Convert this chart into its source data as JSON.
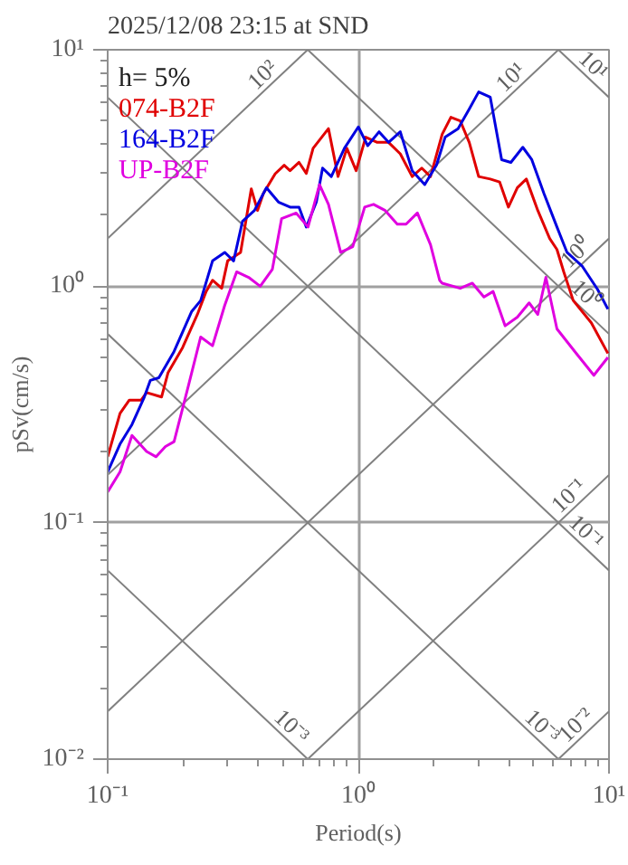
{
  "chart_data": {
    "type": "line",
    "title": "2025/12/08 23:15 at SND",
    "xlabel": "Period(s)",
    "ylabel": "pSv(cm/s)",
    "legend_title": "h= 5%",
    "legend": "top left",
    "log": "xy",
    "grid": true,
    "xlim": [
      0.1,
      10
    ],
    "ylim": [
      0.01,
      10
    ],
    "xticks": [
      {
        "value": 0.1,
        "label": "10⁻¹"
      },
      {
        "value": 1,
        "label": "10⁰"
      },
      {
        "value": 10,
        "label": "10¹"
      }
    ],
    "yticks": [
      {
        "value": 0.01,
        "label": "10⁻²"
      },
      {
        "value": 0.1,
        "label": "10⁻¹"
      },
      {
        "value": 1,
        "label": "10⁰"
      },
      {
        "value": 10,
        "label": "10¹"
      }
    ],
    "series": [
      {
        "color": "#808080",
        "x": [
          0.1,
          0.628
        ],
        "values": [
          1.592,
          10
        ]
      },
      {
        "color": "#808080",
        "x": [
          0.1,
          6.283
        ],
        "values": [
          0.1592,
          10
        ]
      },
      {
        "color": "#808080",
        "x": [
          0.1,
          10
        ],
        "values": [
          0.01592,
          1.592
        ]
      },
      {
        "color": "#808080",
        "x": [
          0.6283,
          10
        ],
        "values": [
          0.01,
          0.1592
        ]
      },
      {
        "color": "#808080",
        "x": [
          6.283,
          10
        ],
        "values": [
          0.01,
          0.01592
        ]
      },
      {
        "color": "#808080",
        "x": [
          6.283,
          10
        ],
        "values": [
          10,
          6.283
        ]
      },
      {
        "color": "#808080",
        "x": [
          0.6283,
          10
        ],
        "values": [
          10,
          0.6283
        ]
      },
      {
        "color": "#808080",
        "x": [
          0.1,
          10
        ],
        "values": [
          6.283,
          0.06283
        ]
      },
      {
        "color": "#808080",
        "x": [
          0.1,
          6.283
        ],
        "values": [
          0.6283,
          0.01
        ]
      },
      {
        "color": "#808080",
        "x": [
          0.1,
          0.6283
        ],
        "values": [
          0.06283,
          0.01
        ]
      },
      {
        "name": "074-B2F",
        "color": "#e00000",
        "x": [
          0.1,
          0.112,
          0.122,
          0.136,
          0.143,
          0.164,
          0.174,
          0.199,
          0.228,
          0.247,
          0.262,
          0.285,
          0.301,
          0.339,
          0.374,
          0.396,
          0.418,
          0.466,
          0.506,
          0.534,
          0.58,
          0.62,
          0.66,
          0.76,
          0.83,
          0.9,
          0.98,
          1.07,
          1.19,
          1.32,
          1.47,
          1.64,
          1.79,
          1.94,
          2.16,
          2.34,
          2.55,
          2.77,
          3.02,
          3.36,
          3.66,
          3.97,
          4.31,
          4.68,
          5.2,
          5.8,
          6.2,
          6.6,
          7.2,
          8.5,
          9.9
        ],
        "values": [
          0.19,
          0.29,
          0.33,
          0.33,
          0.355,
          0.34,
          0.43,
          0.55,
          0.76,
          0.95,
          1.06,
          0.98,
          1.28,
          1.39,
          2.58,
          2.09,
          2.47,
          2.99,
          3.25,
          3.08,
          3.34,
          3.0,
          3.83,
          4.64,
          2.91,
          3.83,
          3.08,
          4.27,
          4.06,
          4.06,
          3.63,
          2.91,
          3.16,
          2.91,
          4.39,
          5.18,
          5.0,
          4.06,
          2.91,
          2.84,
          2.76,
          2.16,
          2.61,
          2.84,
          2.09,
          1.59,
          1.43,
          1.15,
          0.87,
          0.7,
          0.52
        ]
      },
      {
        "name": "164-B2F",
        "color": "#0000e0",
        "x": [
          0.1,
          0.112,
          0.125,
          0.14,
          0.148,
          0.16,
          0.184,
          0.216,
          0.235,
          0.262,
          0.293,
          0.318,
          0.345,
          0.385,
          0.43,
          0.48,
          0.534,
          0.58,
          0.62,
          0.68,
          0.72,
          0.78,
          0.88,
          1.0,
          1.09,
          1.21,
          1.32,
          1.47,
          1.64,
          1.84,
          2.05,
          2.22,
          2.5,
          2.77,
          3.02,
          3.36,
          3.73,
          4.06,
          4.53,
          4.92,
          5.5,
          6.2,
          6.8,
          7.8,
          9.0,
          9.9
        ],
        "values": [
          0.164,
          0.215,
          0.26,
          0.34,
          0.4,
          0.41,
          0.53,
          0.78,
          0.87,
          1.28,
          1.39,
          1.28,
          1.88,
          2.09,
          2.61,
          2.27,
          2.16,
          2.16,
          1.78,
          2.27,
          3.16,
          2.91,
          3.83,
          4.72,
          3.93,
          4.5,
          4.06,
          4.5,
          3.08,
          2.69,
          3.25,
          4.27,
          4.64,
          5.62,
          6.63,
          6.3,
          3.43,
          3.34,
          3.87,
          3.43,
          2.47,
          1.78,
          1.39,
          1.22,
          0.97,
          0.8
        ]
      },
      {
        "name": "UP-B2F",
        "color": "#e000e0",
        "x": [
          0.1,
          0.112,
          0.125,
          0.143,
          0.156,
          0.17,
          0.184,
          0.21,
          0.235,
          0.262,
          0.293,
          0.327,
          0.365,
          0.406,
          0.454,
          0.494,
          0.565,
          0.63,
          0.7,
          0.76,
          0.85,
          0.95,
          1.06,
          1.15,
          1.28,
          1.43,
          1.55,
          1.72,
          1.94,
          2.11,
          2.16,
          2.55,
          2.85,
          3.17,
          3.45,
          3.85,
          4.31,
          4.8,
          5.2,
          5.6,
          6.2,
          7.4,
          8.7,
          9.9
        ],
        "values": [
          0.135,
          0.164,
          0.234,
          0.2,
          0.19,
          0.21,
          0.22,
          0.38,
          0.61,
          0.56,
          0.83,
          1.15,
          1.09,
          1.0,
          1.18,
          1.93,
          2.04,
          1.78,
          2.69,
          2.22,
          1.39,
          1.47,
          2.16,
          2.22,
          2.09,
          1.83,
          1.83,
          2.04,
          1.5,
          1.06,
          1.03,
          0.98,
          1.03,
          0.9,
          0.95,
          0.68,
          0.74,
          0.85,
          0.76,
          1.09,
          0.66,
          0.52,
          0.42,
          0.5
        ]
      }
    ],
    "annotations": [
      {
        "text": "10²",
        "x": 0.45,
        "y": 7.16
      },
      {
        "text": "10¹",
        "x": 4.4,
        "y": 7.0
      },
      {
        "text": "10¹",
        "x": 8.0,
        "y": 7.85
      },
      {
        "text": "10⁰",
        "x": 8.0,
        "y": 1.27
      },
      {
        "text": "10⁰",
        "x": 7.5,
        "y": 0.84
      },
      {
        "text": "10⁻¹",
        "x": 7.5,
        "y": 0.119
      },
      {
        "text": "10⁻¹",
        "x": 7.5,
        "y": 0.0837
      },
      {
        "text": "10⁻³",
        "x": 0.5,
        "y": 0.01256
      },
      {
        "text": "10⁻³",
        "x": 5.0,
        "y": 0.01256
      },
      {
        "text": "10⁻²",
        "x": 8.0,
        "y": 0.01274
      }
    ]
  }
}
